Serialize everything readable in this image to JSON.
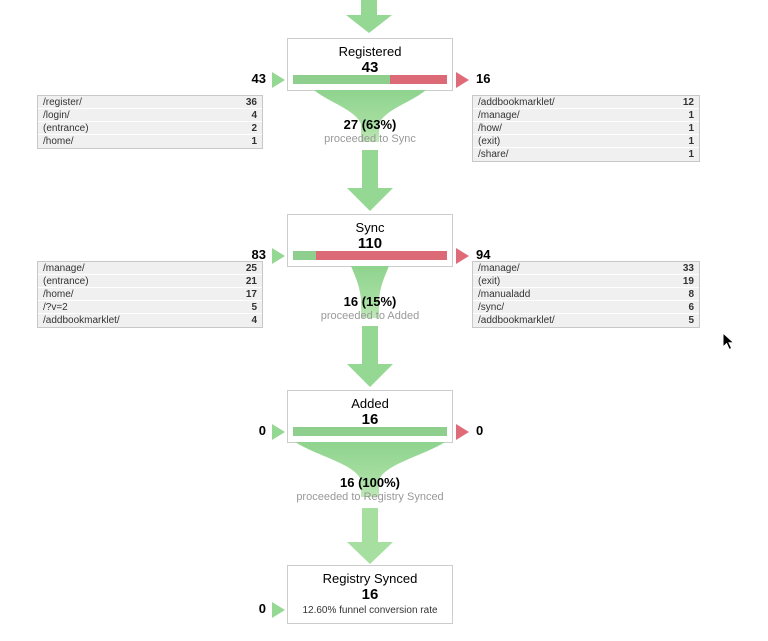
{
  "colors": {
    "bar_green": "#8ecf8e",
    "bar_red": "#dc6a76",
    "arrow_green": "#94d894",
    "arrow_green_light": "#a6dfa0",
    "triangle_red": "#e06a78",
    "box_border": "#cccccc",
    "table_row_bg": "#f0f0f0",
    "sub_text": "#999999"
  },
  "stages": [
    {
      "title": "Registered",
      "value": "43",
      "entries_total": "43",
      "exits_total": "16",
      "bar_green_pct": 63,
      "entries": [
        {
          "label": "/register/",
          "value": "36"
        },
        {
          "label": "/login/",
          "value": "4"
        },
        {
          "label": "(entrance)",
          "value": "2"
        },
        {
          "label": "/home/",
          "value": "1"
        }
      ],
      "exits": [
        {
          "label": "/addbookmarklet/",
          "value": "12"
        },
        {
          "label": "/manage/",
          "value": "1"
        },
        {
          "label": "/how/",
          "value": "1"
        },
        {
          "label": "(exit)",
          "value": "1"
        },
        {
          "label": "/share/",
          "value": "1"
        }
      ],
      "proceed": {
        "label": "27 (63%)",
        "sub": "proceeded to Sync",
        "pct": 63
      }
    },
    {
      "title": "Sync",
      "value": "110",
      "entries_total": "83",
      "exits_total": "94",
      "bar_green_pct": 15,
      "entries": [
        {
          "label": "/manage/",
          "value": "25"
        },
        {
          "label": "(entrance)",
          "value": "21"
        },
        {
          "label": "/home/",
          "value": "17"
        },
        {
          "label": "/?v=2",
          "value": "5"
        },
        {
          "label": "/addbookmarklet/",
          "value": "4"
        }
      ],
      "exits": [
        {
          "label": "/manage/",
          "value": "33"
        },
        {
          "label": "(exit)",
          "value": "19"
        },
        {
          "label": "/manualadd",
          "value": "8"
        },
        {
          "label": "/sync/",
          "value": "6"
        },
        {
          "label": "/addbookmarklet/",
          "value": "5"
        }
      ],
      "proceed": {
        "label": "16 (15%)",
        "sub": "proceeded to Added",
        "pct": 15
      }
    },
    {
      "title": "Added",
      "value": "16",
      "entries_total": "0",
      "exits_total": "0",
      "bar_green_pct": 100,
      "entries": [],
      "exits": [],
      "proceed": {
        "label": "16 (100%)",
        "sub": "proceeded to Registry Synced",
        "pct": 100
      }
    },
    {
      "title": "Registry Synced",
      "value": "16",
      "entries_total": "0",
      "caption": "12.60% funnel conversion rate"
    }
  ]
}
